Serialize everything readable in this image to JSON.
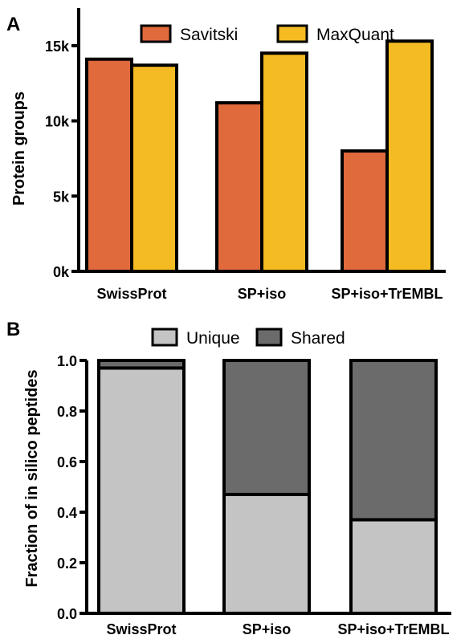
{
  "chart_data": [
    {
      "panel": "A",
      "type": "bar",
      "categories": [
        "SwissProt",
        "SP+iso",
        "SP+iso+TrEMBL"
      ],
      "series": [
        {
          "name": "Savitski",
          "values": [
            14100,
            11200,
            8000
          ],
          "color": "#e06a3c"
        },
        {
          "name": "MaxQuant",
          "values": [
            13700,
            14500,
            15300
          ],
          "color": "#f4bb22"
        }
      ],
      "ylabel": "Protein groups",
      "ylim": [
        0,
        17500
      ],
      "yticks": [
        {
          "value": 0,
          "label": "0k"
        },
        {
          "value": 5000,
          "label": "5k"
        },
        {
          "value": 10000,
          "label": "10k"
        },
        {
          "value": 15000,
          "label": "15k"
        }
      ],
      "grid": false,
      "legend": "top"
    },
    {
      "panel": "B",
      "type": "bar",
      "stacked": true,
      "categories": [
        "SwissProt",
        "SP+iso",
        "SP+iso+TrEMBL"
      ],
      "series": [
        {
          "name": "Unique",
          "values": [
            0.97,
            0.47,
            0.37
          ],
          "color": "#c4c4c4"
        },
        {
          "name": "Shared",
          "values": [
            0.03,
            0.53,
            0.63
          ],
          "color": "#6b6b6b"
        }
      ],
      "ylabel": "Fraction of in silico peptides",
      "ylim": [
        0,
        1.0
      ],
      "yticks": [
        {
          "value": 0.0,
          "label": "0.0"
        },
        {
          "value": 0.2,
          "label": "0.2"
        },
        {
          "value": 0.4,
          "label": "0.4"
        },
        {
          "value": 0.6,
          "label": "0.6"
        },
        {
          "value": 0.8,
          "label": "0.8"
        },
        {
          "value": 1.0,
          "label": "1.0"
        }
      ],
      "grid": false,
      "legend": "top"
    }
  ]
}
